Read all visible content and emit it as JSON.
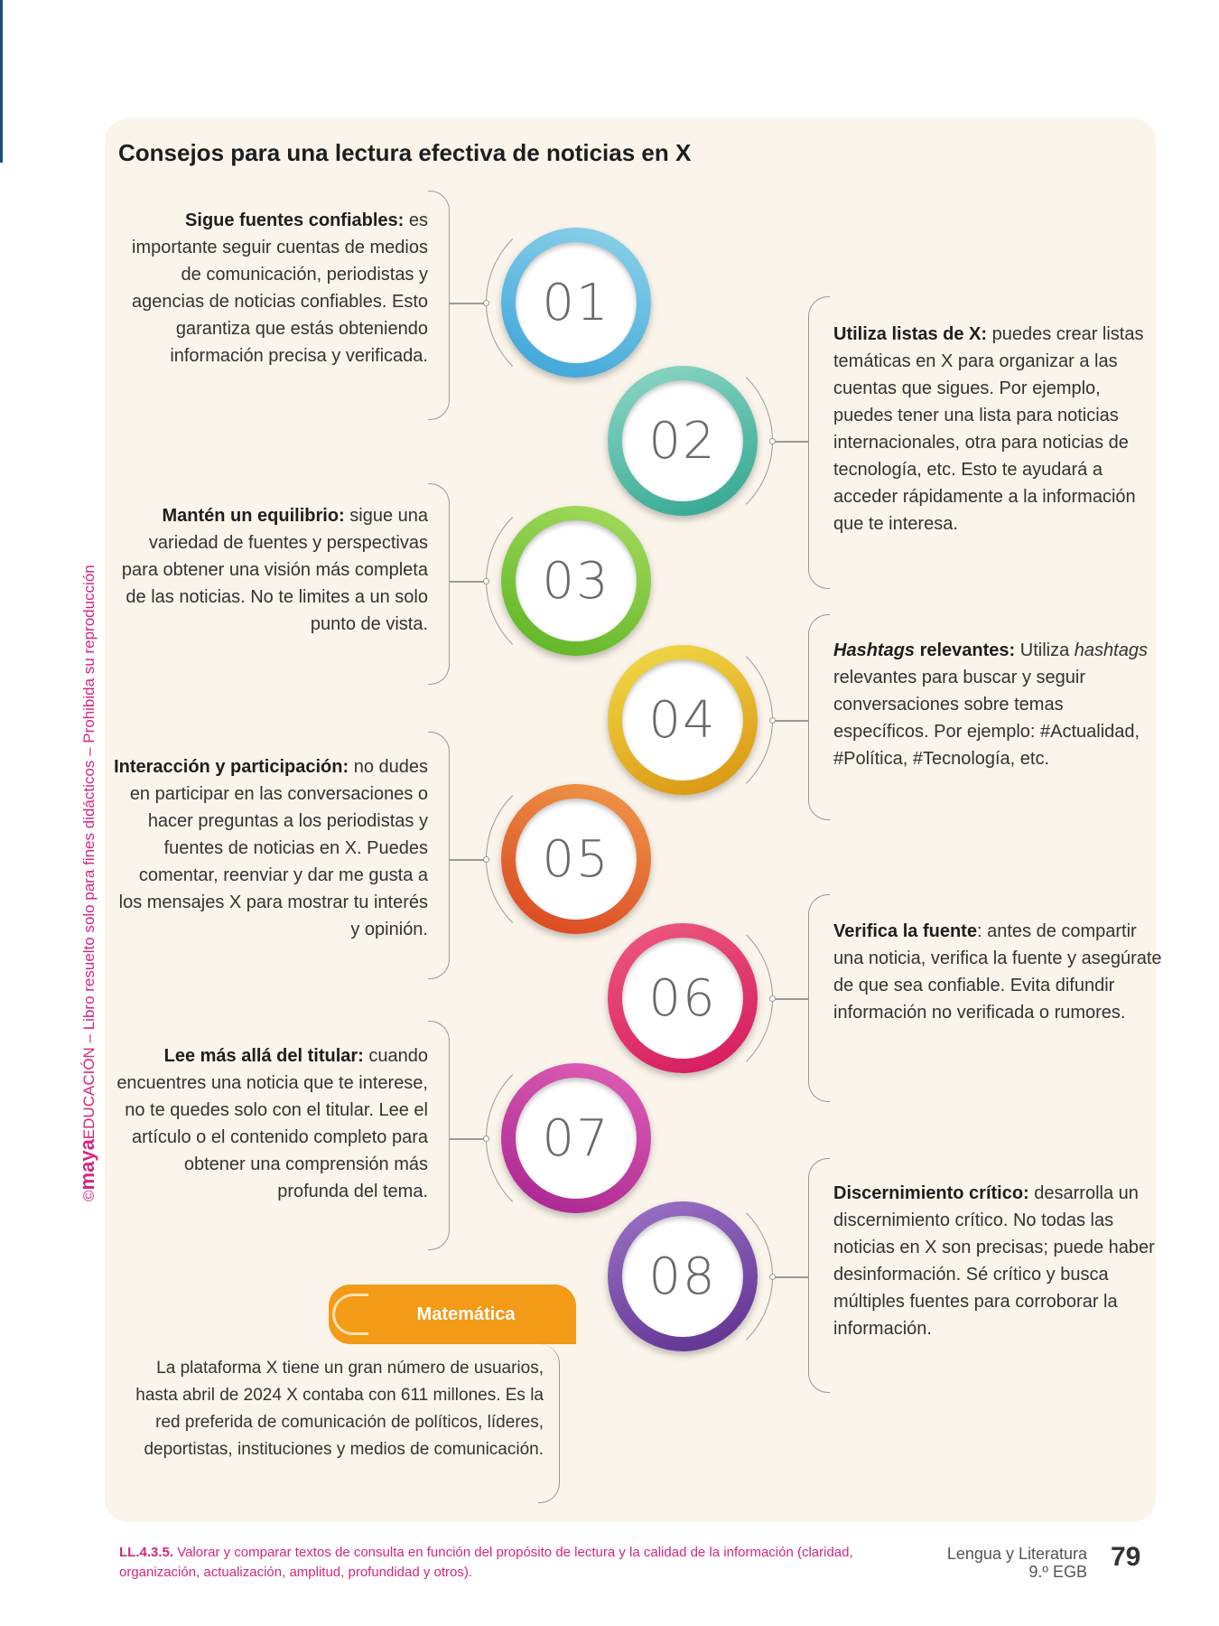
{
  "title": "Consejos para una lectura efectiva de noticias en X",
  "side_note": {
    "brand": "maya",
    "text": "EDUCACIÓN – Libro resuelto solo para fines didácticos – Prohibida su reproducción",
    "copyright": "©"
  },
  "steps": [
    {
      "num": "01",
      "color_a": "#3aa3d8",
      "color_b": "#8fd3ea",
      "lead": "Sigue fuentes confiables:",
      "body": " es importante seguir cuentas de medios de comunicación, periodistas y agencias de noticias confiables. Esto garantiza que estás obteniendo información precisa y verificada."
    },
    {
      "num": "02",
      "color_a": "#2fa58f",
      "color_b": "#8ed8c6",
      "lead": "Utiliza listas de X:",
      "body": " puedes crear listas temáticas en X para organizar a las cuentas que sigues. Por ejemplo, puedes tener una lista para noticias internacionales, otra para noticias de tecnología, etc. Esto te ayudará a acceder rápidamente a la información que te interesa."
    },
    {
      "num": "03",
      "color_a": "#5db323",
      "color_b": "#a6dc5e",
      "lead": "Mantén un equilibrio:",
      "body": " sigue una variedad de fuentes y perspectivas para obtener una visión más completa de las noticias. No te limites a un solo punto de vista."
    },
    {
      "num": "04",
      "color_a": "#d9920f",
      "color_b": "#f2dc4a",
      "lead_italic": "Hashtags",
      "lead": " relevantes:",
      "body_a": " Utiliza ",
      "body_italic": "hashtags",
      "body": " relevantes para buscar y seguir conversaciones sobre temas específicos. Por ejemplo: #Actualidad, #Política, #Tecnología, etc."
    },
    {
      "num": "05",
      "color_a": "#d9431f",
      "color_b": "#f09a4a",
      "lead": "Interacción y participación:",
      "body": " no dudes en participar en las conversaciones o hacer preguntas a los periodistas y fuentes de noticias en X. Puedes comentar, reenviar y dar me gusta a los mensajes X para mostrar tu interés y opinión."
    },
    {
      "num": "06",
      "color_a": "#d4185e",
      "color_b": "#ee5b7e",
      "lead": "Verifica la fuente",
      "body": ": antes de compartir una noticia, verifica la fuente y asegúrate de que sea confiable. Evita difundir información no verificada o rumores."
    },
    {
      "num": "07",
      "color_a": "#a8238f",
      "color_b": "#e060b6",
      "lead": "Lee más allá del titular:",
      "body": " cuando encuentres una noticia que te interese, no te quedes solo con el titular. Lee el artículo o el contenido completo para obtener una comprensión más profunda del tema."
    },
    {
      "num": "08",
      "color_a": "#5e2f8f",
      "color_b": "#9b74c6",
      "lead": "Discernimiento crítico:",
      "body": " desarrolla un discernimiento crítico. No todas las noticias en X son precisas; puede haber desinformación. Sé crítico y busca múltiples fuentes para corroborar la información."
    }
  ],
  "math_box": {
    "label": "Matemática",
    "text": "La plataforma X tiene un gran número de usuarios, hasta abril de 2024 X contaba con  611 millones. Es la red preferida de comunicación de políticos, líderes, deportistas,  instituciones y medios de comunicación.",
    "color": "#f39a17"
  },
  "footer": {
    "code": "LL.4.3.5.",
    "text": " Valorar y comparar textos de consulta en función del propósito de lectura y la calidad de la información (claridad, organización, actualización, amplitud, profundidad y otros).",
    "subject": "Lengua y Literatura",
    "grade": "9.º EGB",
    "page": "79"
  }
}
